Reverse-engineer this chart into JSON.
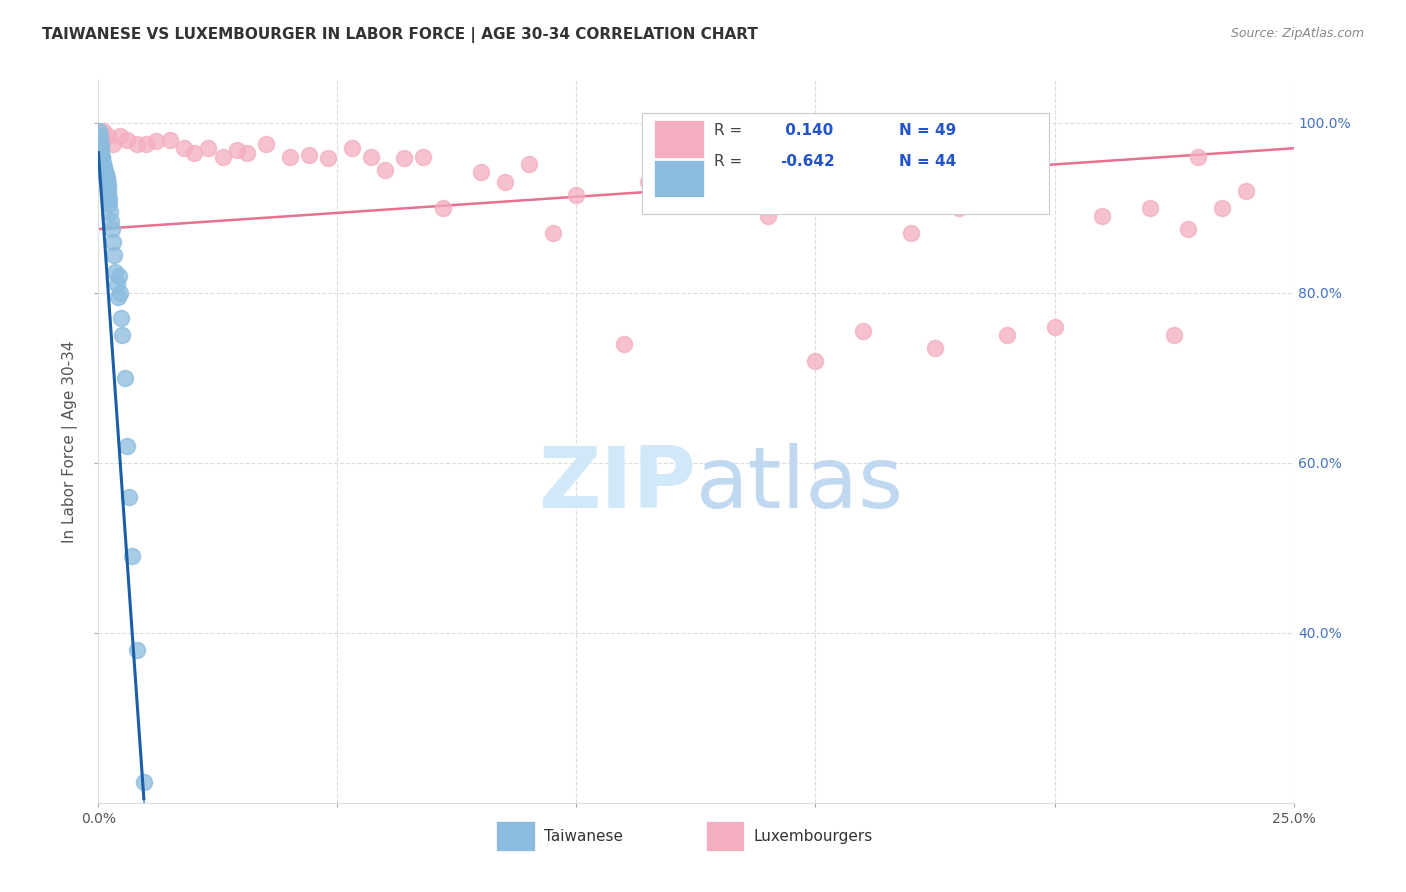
{
  "title": "TAIWANESE VS LUXEMBOURGER IN LABOR FORCE | AGE 30-34 CORRELATION CHART",
  "source": "Source: ZipAtlas.com",
  "ylabel": "In Labor Force | Age 30-34",
  "taiwanese_color": "#8bbcde",
  "luxembourger_color": "#f4aec0",
  "trend_blue": "#1a5fa8",
  "trend_pink": "#e87090",
  "watermark_zip_color": "#d0e8f8",
  "watermark_atlas_color": "#c0d8f0",
  "xlim": [
    0.0,
    0.25
  ],
  "ylim": [
    0.2,
    1.05
  ],
  "figsize": [
    14.06,
    8.92
  ],
  "dpi": 100,
  "taiwanese_x": [
    0.0002,
    0.0003,
    0.0005,
    0.0005,
    0.0006,
    0.0007,
    0.0008,
    0.0008,
    0.0009,
    0.001,
    0.0011,
    0.0012,
    0.0013,
    0.0014,
    0.0015,
    0.0015,
    0.0016,
    0.0017,
    0.0018,
    0.0018,
    0.0019,
    0.002,
    0.0021,
    0.0021,
    0.0022,
    0.0023,
    0.0025,
    0.0026,
    0.0028,
    0.003,
    0.0032,
    0.0035,
    0.0038,
    0.004,
    0.0043,
    0.0045,
    0.0048,
    0.005,
    0.0055,
    0.006,
    0.0065,
    0.007,
    0.008,
    0.0095
  ],
  "taiwanese_y": [
    0.99,
    0.985,
    0.975,
    0.97,
    0.965,
    0.96,
    0.958,
    0.955,
    0.953,
    0.95,
    0.948,
    0.945,
    0.943,
    0.941,
    0.94,
    0.938,
    0.936,
    0.935,
    0.933,
    0.93,
    0.928,
    0.925,
    0.92,
    0.915,
    0.91,
    0.905,
    0.895,
    0.885,
    0.875,
    0.86,
    0.845,
    0.825,
    0.81,
    0.795,
    0.82,
    0.8,
    0.77,
    0.75,
    0.7,
    0.62,
    0.56,
    0.49,
    0.38,
    0.225
  ],
  "luxembourger_x": [
    0.001,
    0.002,
    0.003,
    0.0045,
    0.006,
    0.008,
    0.01,
    0.012,
    0.015,
    0.018,
    0.02,
    0.023,
    0.026,
    0.029,
    0.031,
    0.035,
    0.04,
    0.044,
    0.048,
    0.053,
    0.057,
    0.06,
    0.064,
    0.068,
    0.072,
    0.08,
    0.085,
    0.09,
    0.095,
    0.1,
    0.11,
    0.115,
    0.12,
    0.135,
    0.14,
    0.15,
    0.16,
    0.17,
    0.175,
    0.18,
    0.19,
    0.2,
    0.21,
    0.22,
    0.225,
    0.228,
    0.23,
    0.235,
    0.24
  ],
  "luxembourger_y": [
    0.99,
    0.985,
    0.975,
    0.985,
    0.98,
    0.975,
    0.975,
    0.978,
    0.98,
    0.97,
    0.965,
    0.97,
    0.96,
    0.968,
    0.965,
    0.975,
    0.96,
    0.962,
    0.958,
    0.97,
    0.96,
    0.945,
    0.958,
    0.96,
    0.9,
    0.942,
    0.93,
    0.952,
    0.87,
    0.915,
    0.74,
    0.93,
    0.92,
    0.905,
    0.89,
    0.72,
    0.755,
    0.87,
    0.735,
    0.9,
    0.75,
    0.76,
    0.89,
    0.9,
    0.75,
    0.875,
    0.96,
    0.9,
    0.92
  ]
}
